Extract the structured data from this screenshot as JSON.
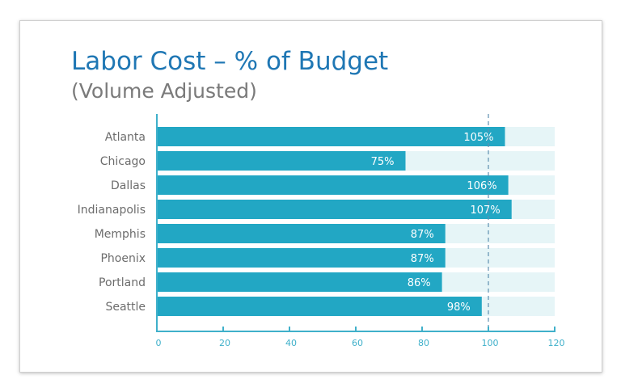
{
  "chart_data": {
    "type": "bar",
    "orientation": "horizontal",
    "title": "Labor Cost – % of Budget",
    "subtitle": "(Volume Adjusted)",
    "categories": [
      "Atlanta",
      "Chicago",
      "Dallas",
      "Indianapolis",
      "Memphis",
      "Phoenix",
      "Portland",
      "Seattle"
    ],
    "values": [
      105,
      75,
      106,
      107,
      87,
      87,
      86,
      98
    ],
    "data_labels": [
      "105%",
      "75%",
      "106%",
      "107%",
      "87%",
      "87%",
      "86%",
      "98%"
    ],
    "xlim": [
      0,
      120
    ],
    "xticks": [
      0,
      20,
      40,
      60,
      80,
      100,
      120
    ],
    "reference_line": 100,
    "grid": false,
    "colors": {
      "bar": "#22a7c4",
      "track": "#e6f5f7",
      "axis": "#3fb0ca",
      "reference": "#5f8fb0",
      "title": "#1f77b4",
      "subtitle": "#7a7a7a"
    }
  }
}
